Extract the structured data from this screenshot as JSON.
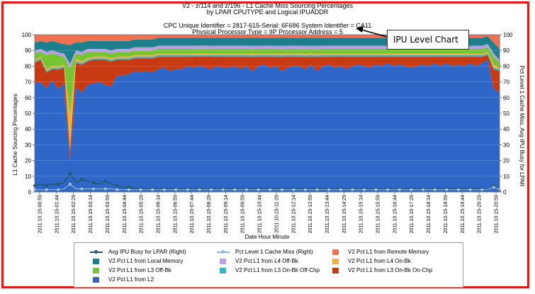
{
  "chart_data": {
    "type": "area",
    "title_lines": [
      "V2 - z/114 and z/196 - L1 Cache Miss Sourcing Percentages",
      "by LPAR CPUTYPE and Logical IPUADDR"
    ],
    "subtitle_lines": [
      "CPC Unique Identifier = 2817-615-Serial: 6F686 System Identifier = CA11",
      "Physical Processor Type = IIP Processor Address = 5"
    ],
    "xlabel": "Date Hour Minute",
    "ylabel_left": "L1 Cache Sourcing Percentages",
    "ylabel_right": "Pct Level 1 Cache Miss, Avg IPU Busy for LPAR",
    "ylim": [
      0,
      100
    ],
    "yticks": [
      0,
      10,
      20,
      30,
      40,
      50,
      60,
      70,
      80,
      90,
      100
    ],
    "x_tick_labels": [
      "2011.10.15-00:59",
      "2011.10.15-01:44",
      "2011.10.15-02:29",
      "2011.10.15-03:14",
      "2011.10.15-03:59",
      "2011.10.15-04:44",
      "2011.10.15-05:29",
      "2011.10.15-06:14",
      "2011.10.15-06:59",
      "2011.10.15-07:44",
      "2011.10.15-08:29",
      "2011.10.15-09:14",
      "2011.10.15-09:59",
      "2011.10.15-10:44",
      "2011.10.15-11:29",
      "2011.10.15-12:14",
      "2011.10.15-12:59",
      "2011.10.15-13:44",
      "2011.10.15-14:29",
      "2011.10.15-15:14",
      "2011.10.15-15:59",
      "2011.10.15-16:44",
      "2011.10.15-17:29",
      "2011.10.15-18:14",
      "2011.10.15-18:59",
      "2011.10.15-19:44",
      "2011.10.15-20:29",
      "2011.10.15-20:59"
    ],
    "stacked_series": [
      {
        "name": "V2 Pct L1 from L2",
        "color": "#2e67c8",
        "values": [
          69,
          70,
          66,
          71,
          65,
          69,
          20,
          67,
          63,
          68,
          69,
          70,
          68,
          67,
          74,
          74,
          75,
          77,
          76,
          77,
          76,
          78,
          79,
          77,
          78,
          78,
          80,
          79,
          81,
          80,
          78,
          80,
          79,
          79,
          80,
          78,
          80,
          76,
          80,
          81,
          79,
          80,
          76,
          79,
          80,
          80,
          77,
          81,
          76,
          80,
          81,
          79,
          80,
          78,
          80,
          81,
          80,
          79,
          81,
          80,
          82,
          80,
          81,
          80,
          79,
          80,
          81,
          80,
          82,
          80,
          82,
          80,
          81,
          80,
          82,
          80,
          82,
          84,
          66,
          63
        ]
      },
      {
        "name": "V2 Pct L1 from L3 On-Bk On-Chp",
        "color": "#c83a12",
        "values": [
          13,
          14,
          10,
          7,
          12,
          10,
          6,
          15,
          18,
          15,
          15,
          14,
          16,
          16,
          10,
          10,
          9,
          8,
          9,
          8,
          9,
          8,
          7,
          9,
          8,
          8,
          6,
          7,
          6,
          7,
          8,
          6,
          7,
          7,
          6,
          8,
          6,
          9,
          6,
          5,
          7,
          6,
          9,
          7,
          6,
          6,
          8,
          5,
          9,
          6,
          5,
          7,
          6,
          8,
          6,
          5,
          6,
          7,
          5,
          6,
          4,
          6,
          5,
          6,
          7,
          6,
          5,
          6,
          4,
          6,
          4,
          6,
          5,
          6,
          4,
          6,
          4,
          3,
          12,
          14
        ]
      },
      {
        "name": "V2 Pct L1 from L3 On-Bk Off-Chp",
        "color": "#38b4c4",
        "values": [
          1,
          1,
          1,
          1,
          1,
          1,
          0.5,
          1,
          1,
          1,
          1,
          1,
          1,
          1,
          1,
          1,
          1,
          1,
          1,
          1,
          1,
          1,
          1,
          1,
          1,
          1,
          1,
          1,
          1,
          1,
          1,
          1,
          1,
          1,
          1,
          1,
          1,
          1,
          1,
          1,
          1,
          1,
          1,
          1,
          1,
          1,
          1,
          1,
          1,
          1,
          1,
          1,
          1,
          1,
          1,
          1,
          1,
          1,
          1,
          1,
          1,
          1,
          1,
          1,
          1,
          1,
          1,
          1,
          1,
          1,
          1,
          1,
          1,
          1,
          1,
          1,
          1,
          1,
          1,
          1
        ]
      },
      {
        "name": "V2 Pct L1 from L4 On-Bk",
        "color": "#f0b040",
        "values": [
          1,
          1,
          1,
          1,
          1,
          1,
          22,
          2,
          1,
          1,
          1,
          1,
          1,
          1,
          1,
          1,
          1,
          1,
          1,
          1,
          1,
          1,
          1,
          1,
          1,
          1,
          1,
          1,
          1,
          1,
          1,
          1,
          1,
          1,
          1,
          1,
          1,
          1,
          1,
          1,
          1,
          1,
          1,
          1,
          1,
          1,
          1,
          1,
          1,
          1,
          1,
          1,
          1,
          1,
          1,
          1,
          1,
          1,
          1,
          1,
          1,
          1,
          1,
          1,
          1,
          1,
          1,
          1,
          1,
          1,
          1,
          1,
          1,
          1,
          1,
          1,
          1,
          1,
          2,
          1
        ]
      },
      {
        "name": "V2 Pct L1 from L3 Off-Bk",
        "color": "#76c432",
        "values": [
          4,
          3,
          9,
          8,
          7,
          5,
          30,
          3,
          4,
          4,
          3,
          3,
          3,
          3,
          3,
          3,
          3,
          3,
          3,
          3,
          3,
          3,
          3,
          3,
          3,
          3,
          3,
          3,
          3,
          3,
          3,
          3,
          3,
          3,
          3,
          3,
          3,
          3,
          3,
          3,
          3,
          3,
          3,
          3,
          3,
          3,
          3,
          3,
          3,
          3,
          3,
          3,
          3,
          3,
          3,
          3,
          3,
          3,
          3,
          3,
          3,
          3,
          3,
          3,
          3,
          3,
          3,
          3,
          3,
          3,
          3,
          3,
          3,
          3,
          3,
          3,
          3,
          3,
          5,
          3
        ]
      },
      {
        "name": "V2 Pct L1 from L4 Off-Bk",
        "color": "#b8a0e0",
        "values": [
          2,
          2,
          2,
          2,
          2,
          2,
          3,
          2,
          2,
          2,
          2,
          2,
          2,
          2,
          2,
          2,
          2,
          2,
          2,
          2,
          2,
          2,
          2,
          2,
          2,
          2,
          2,
          2,
          2,
          2,
          2,
          2,
          2,
          2,
          2,
          2,
          2,
          2,
          2,
          2,
          2,
          2,
          2,
          2,
          2,
          2,
          2,
          2,
          2,
          2,
          2,
          2,
          2,
          2,
          2,
          2,
          2,
          2,
          2,
          2,
          2,
          2,
          2,
          2,
          2,
          2,
          2,
          2,
          2,
          2,
          2,
          2,
          2,
          2,
          2,
          2,
          2,
          2,
          2,
          2
        ]
      },
      {
        "name": "V2 Pct L1 from Local Memory",
        "color": "#1e7f8c",
        "values": [
          5,
          5,
          6,
          6,
          6,
          6,
          12,
          5,
          6,
          5,
          5,
          5,
          5,
          6,
          5,
          5,
          5,
          5,
          5,
          5,
          5,
          5,
          5,
          5,
          5,
          5,
          5,
          5,
          5,
          5,
          5,
          5,
          5,
          5,
          5,
          5,
          5,
          5,
          5,
          5,
          5,
          5,
          5,
          5,
          5,
          5,
          5,
          5,
          5,
          5,
          5,
          5,
          5,
          5,
          5,
          5,
          5,
          5,
          5,
          5,
          5,
          5,
          5,
          5,
          5,
          5,
          5,
          5,
          5,
          5,
          5,
          5,
          5,
          5,
          5,
          5,
          5,
          5,
          7,
          7
        ]
      },
      {
        "name": "V2 Pct L1 from Remote Memory",
        "color": "#f07050",
        "values": [
          5,
          4,
          5,
          4,
          5,
          6,
          6.5,
          5,
          5,
          4,
          4,
          4,
          4,
          4,
          4,
          4,
          4,
          3,
          3,
          3,
          3,
          2,
          2,
          2,
          2,
          2,
          2,
          2,
          2,
          2,
          2,
          2,
          2,
          2,
          2,
          2,
          2,
          2,
          2,
          2,
          2,
          2,
          2,
          2,
          2,
          2,
          2,
          2,
          2,
          2,
          2,
          2,
          2,
          2,
          2,
          2,
          2,
          2,
          2,
          2,
          2,
          2,
          2,
          2,
          2,
          2,
          2,
          2,
          2,
          2,
          2,
          2,
          2,
          2,
          2,
          2,
          2,
          1,
          5,
          9
        ]
      }
    ],
    "line_series": [
      {
        "name": "Avg IPU Busy for LPAR (Right)",
        "color": "#1e5a6a",
        "values": [
          4,
          5,
          4,
          5,
          5,
          6,
          12,
          6,
          8,
          7,
          6,
          5,
          7,
          5,
          4,
          3,
          3,
          2,
          2,
          2,
          2,
          2,
          2,
          2,
          2,
          2,
          2,
          2,
          2,
          2,
          2,
          2,
          2,
          2,
          2,
          2,
          2,
          2,
          2,
          2,
          2,
          2,
          2,
          2,
          2,
          2,
          2,
          2,
          2,
          2,
          2,
          2,
          2,
          2,
          2,
          2,
          2,
          2,
          2,
          2,
          2,
          2,
          2,
          2,
          2,
          2,
          2,
          2,
          2,
          2,
          2,
          2,
          2,
          2,
          2,
          2,
          2,
          1,
          4,
          1
        ]
      },
      {
        "name": "Pct Level 1 Cache Miss (Right)",
        "color": "#8ab8d8",
        "values": [
          1.5,
          1.5,
          1.5,
          1.5,
          1.5,
          2,
          5,
          2,
          2,
          2,
          2,
          2,
          2,
          2,
          1.5,
          1.5,
          1.5,
          1.5,
          1.5,
          1.5,
          1.5,
          1.5,
          1.5,
          1.5,
          1.5,
          1.5,
          1.5,
          1.5,
          1.5,
          1.5,
          1.5,
          1.5,
          1.5,
          1.5,
          1.5,
          1.5,
          1.5,
          1.5,
          1.5,
          1.5,
          1.5,
          1.5,
          1.5,
          1.5,
          1.5,
          1.5,
          1.5,
          1.5,
          1.5,
          1.5,
          1.5,
          1.5,
          1.5,
          1.5,
          1.5,
          1.5,
          1.5,
          1.5,
          1.5,
          1.5,
          1.5,
          1.5,
          1.5,
          1.5,
          1.5,
          1.5,
          1.5,
          1.5,
          1.5,
          1.5,
          1.5,
          1.5,
          1.5,
          1.5,
          1.5,
          1.5,
          1.5,
          1.5,
          3,
          1.5
        ]
      }
    ],
    "legend_order": [
      "Avg IPU Busy for LPAR (Right)",
      "Pct Level 1 Cache Miss (Right)",
      "V2 Pct L1 from Remote Memory",
      "V2 Pct L1 from Local Memory",
      "V2 Pct L1 from L4 Off-Bk",
      "V2 Pct L1 from L4 On-Bk",
      "V2 Pct L1 from L3 Off-Bk",
      "V2 Pct L1 from L3 On-Bk Off-Chp",
      "V2 Pct L1 from L3 On-Bk On-Chp",
      "V2 Pct L1 from L2"
    ]
  },
  "callout": {
    "label": "IPU Level Chart"
  }
}
